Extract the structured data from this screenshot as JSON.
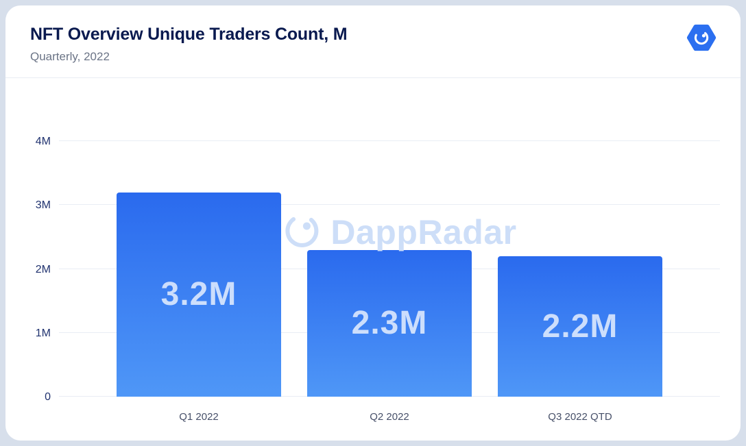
{
  "header": {
    "title": "NFT Overview Unique Traders Count, M",
    "subtitle": "Quarterly, 2022"
  },
  "logo": {
    "icon": "dappradar-hexagon-logo"
  },
  "watermark": {
    "icon": "dappradar-radar-icon",
    "text": "DappRadar"
  },
  "chart_data": {
    "type": "bar",
    "title": "NFT Overview Unique Traders Count, M",
    "subtitle": "Quarterly, 2022",
    "categories": [
      "Q1 2022",
      "Q2 2022",
      "Q3 2022 QTD"
    ],
    "values": [
      3.2,
      2.3,
      2.2
    ],
    "bar_labels": [
      "3.2M",
      "2.3M",
      "2.2M"
    ],
    "unit": "M",
    "ylim": [
      0,
      4
    ],
    "yticks": [
      {
        "value": 0,
        "label": "0"
      },
      {
        "value": 1,
        "label": "1M"
      },
      {
        "value": 2,
        "label": "2M"
      },
      {
        "value": 3,
        "label": "3M"
      },
      {
        "value": 4,
        "label": "4M"
      }
    ],
    "grid": true,
    "legend": "none",
    "colors": {
      "bar_gradient_top": "#2a6aee",
      "bar_gradient_bottom": "#4f97f7",
      "bar_value_text": "#cfe2fb",
      "accent": "#2b6ff0"
    }
  }
}
